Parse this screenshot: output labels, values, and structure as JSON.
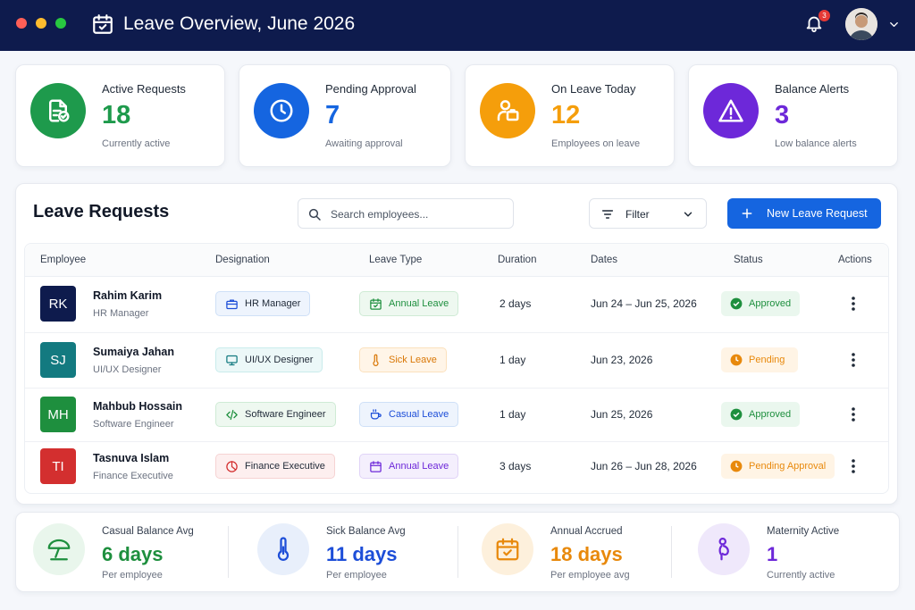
{
  "header": {
    "title": "Leave Overview, June 2026",
    "notification_count": 3
  },
  "stats": [
    {
      "label": "Active Requests",
      "value": 18,
      "caption": "Currently active"
    },
    {
      "label": "Pending Approval",
      "value": 7,
      "caption": "Awaiting approval"
    },
    {
      "label": "On Leave Today",
      "value": 12,
      "caption": "Employees on leave"
    },
    {
      "label": "Balance Alerts",
      "value": 3,
      "caption": "Low balance alerts"
    }
  ],
  "requests": {
    "title": "Leave Requests",
    "search_placeholder": "Search employees...",
    "filter": "Filter",
    "new_button": "New Leave Request",
    "columns": [
      "Employee",
      "Designation",
      "Leave Type",
      "Duration",
      "Dates",
      "Status",
      "Actions"
    ],
    "rows": [
      {
        "initials": "RK",
        "name": "Rahim Karim",
        "role": "HR Manager",
        "designation": "HR Manager",
        "leave_type": "Annual Leave",
        "duration": "2 days",
        "dates": "Jun 24 – Jun 25, 2026",
        "status": "Approved"
      },
      {
        "initials": "SJ",
        "name": "Sumaiya Jahan",
        "role": "UI/UX Designer",
        "designation": "UI/UX Designer",
        "leave_type": "Sick Leave",
        "duration": "1 day",
        "dates": "Jun 23, 2026",
        "status": "Pending"
      },
      {
        "initials": "MH",
        "name": "Mahbub Hossain",
        "role": "Software Engineer",
        "designation": "Software Engineer",
        "leave_type": "Casual Leave",
        "duration": "1 day",
        "dates": "Jun 25, 2026",
        "status": "Approved"
      },
      {
        "initials": "TI",
        "name": "Tasnuva Islam",
        "role": "Finance Executive",
        "designation": "Finance Executive",
        "leave_type": "Annual Leave",
        "duration": "3 days",
        "dates": "Jun 26 – Jun 28, 2026",
        "status": "Pending Approval"
      }
    ]
  },
  "balances": [
    {
      "label": "Casual Balance Avg",
      "value": "6 days",
      "caption": "Per employee"
    },
    {
      "label": "Sick Balance Avg",
      "value": "11 days",
      "caption": "Per employee"
    },
    {
      "label": "Annual Accrued",
      "value": "18 days",
      "caption": "Per employee avg"
    },
    {
      "label": "Maternity Active",
      "value": 1,
      "caption": "Currently active"
    }
  ]
}
